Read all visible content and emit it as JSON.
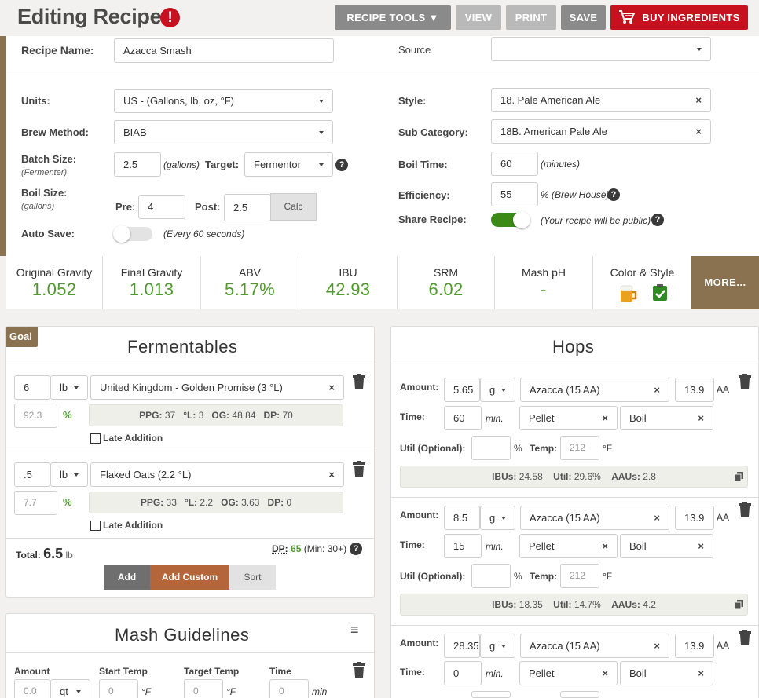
{
  "header": {
    "title": "Editing Recipe",
    "warning_icon": "!",
    "recipe_tools": "RECIPE TOOLS ▼",
    "view": "VIEW",
    "print": "PRINT",
    "save": "SAVE",
    "buy": "BUY INGREDIENTS"
  },
  "form": {
    "recipe_name_label": "Recipe Name:",
    "recipe_name": "Azacca Smash",
    "source_label": "Source",
    "source_value": "",
    "units_label": "Units:",
    "units_value": "US - (Gallons, lb, oz, °F)",
    "brew_method_label": "Brew Method:",
    "brew_method_value": "BIAB",
    "batch_size_label": "Batch Size:",
    "batch_size_sub": "(Fermenter)",
    "batch_size_value": "2.5",
    "batch_size_unit": "(gallons)",
    "target_label": "Target:",
    "target_value": "Fermentor",
    "boil_size_label": "Boil Size:",
    "boil_size_sub": "(gallons)",
    "pre_label": "Pre:",
    "pre_value": "4",
    "post_label": "Post:",
    "post_value": "2.5",
    "calc_label": "Calc",
    "autosave_label": "Auto Save:",
    "autosave_note": "(Every 60 seconds)",
    "autosave_on": false,
    "style_label": "Style:",
    "style_value": "18. Pale American Ale",
    "subcat_label": "Sub Category:",
    "subcat_value": "18B. American Pale Ale",
    "boil_time_label": "Boil Time:",
    "boil_time_value": "60",
    "boil_time_unit": "(minutes)",
    "efficiency_label": "Efficiency:",
    "efficiency_value": "55",
    "efficiency_unit": "% (Brew House)",
    "share_label": "Share Recipe:",
    "share_note": "(Your recipe will be public)",
    "share_on": true,
    "clear_icon": "×",
    "help_icon": "?"
  },
  "stats": [
    {
      "label": "Original Gravity",
      "value": "1.052"
    },
    {
      "label": "Final Gravity",
      "value": "1.013"
    },
    {
      "label": "ABV",
      "value": "5.17%"
    },
    {
      "label": "IBU",
      "value": "42.93"
    },
    {
      "label": "SRM",
      "value": "6.02"
    },
    {
      "label": "Mash pH",
      "value": "-"
    },
    {
      "label": "Color & Style",
      "value": ""
    }
  ],
  "more": "MORE...",
  "fermentables": {
    "goal": "Goal",
    "title": "Fermentables",
    "percent_sign": "%",
    "items": [
      {
        "amount": "6",
        "unit": "lb",
        "name": "United Kingdom - Golden Promise (3 °L)",
        "percent": "92.3",
        "ppg_label": "PPG:",
        "ppg": "37",
        "l_label": "°L:",
        "l": "3",
        "og_label": "OG:",
        "og": "48.84",
        "dp_label": "DP:",
        "dp": "70",
        "late": "Late Addition"
      },
      {
        "amount": ".5",
        "unit": "lb",
        "name": "Flaked Oats (2.2 °L)",
        "percent": "7.7",
        "ppg_label": "PPG:",
        "ppg": "33",
        "l_label": "°L:",
        "l": "2.2",
        "og_label": "OG:",
        "og": "3.63",
        "dp_label": "DP:",
        "dp": "0",
        "late": "Late Addition"
      }
    ],
    "total_label": "Total:",
    "total_value": "6.5",
    "total_unit": "lb",
    "dp_label": "DP:",
    "dp_value": "65",
    "dp_min": "(Min: 30+)",
    "add": "Add",
    "add_custom": "Add Custom",
    "sort": "Sort"
  },
  "mash": {
    "title": "Mash Guidelines",
    "menu_icon": "≡",
    "amount_label": "Amount",
    "start_temp_label": "Start Temp",
    "target_temp_label": "Target Temp",
    "time_label": "Time",
    "amount_value": "0.0",
    "amount_unit": "qt",
    "start_value": "0",
    "target_value": "0",
    "time_value": "0",
    "temp_unit": "°F",
    "time_unit": "min"
  },
  "hops": {
    "title": "Hops",
    "amount_label": "Amount:",
    "time_label": "Time:",
    "util_label": "Util (Optional):",
    "temp_label": "Temp:",
    "aa_label": "AA",
    "min_label": "min.",
    "pct": "%",
    "deg": "°F",
    "ibu_label": "IBUs:",
    "util_stat_label": "Util:",
    "aau_label": "AAUs:",
    "items": [
      {
        "amount": "5.65",
        "unit": "g",
        "name": "Azacca (15 AA)",
        "aa": "13.9",
        "time": "60",
        "form": "Pellet",
        "use": "Boil",
        "temp": "212",
        "ibus": "24.58",
        "util": "29.6%",
        "aaus": "2.8"
      },
      {
        "amount": "8.5",
        "unit": "g",
        "name": "Azacca (15 AA)",
        "aa": "13.9",
        "time": "15",
        "form": "Pellet",
        "use": "Boil",
        "temp": "212",
        "ibus": "18.35",
        "util": "14.7%",
        "aaus": "4.2"
      },
      {
        "amount": "28.35",
        "unit": "g",
        "name": "Azacca (15 AA)",
        "aa": "13.9",
        "time": "0",
        "form": "Pellet",
        "use": "Boil"
      }
    ]
  },
  "colors": {
    "accent": "#8a7251",
    "danger": "#c8111f",
    "stat_value": "#4f9a2e",
    "toggle_on": "#3b8a16"
  }
}
